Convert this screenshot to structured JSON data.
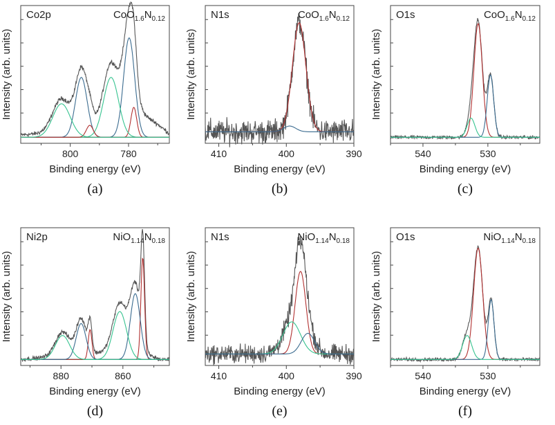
{
  "chart_data": [
    {
      "type": "line",
      "panel_label": "(a)",
      "region": "Co2p",
      "compound": {
        "base": "CoO",
        "o_sub": "1.6",
        "n": "N",
        "n_sub": "0.12"
      },
      "xlabel": "Binding energy (eV)",
      "ylabel": "Intensity (arb. units)",
      "xlim": [
        817,
        766
      ],
      "ylim": [
        -0.05,
        1.1
      ],
      "xticks": [
        800,
        780
      ],
      "x_reversed": true,
      "series": [
        {
          "kind": "measured",
          "color": "#555555",
          "peaks": [
            {
              "c": 779.8,
              "w": 1.9,
              "a": 0.83
            },
            {
              "c": 778.2,
              "w": 1.0,
              "a": 0.25
            },
            {
              "c": 786.0,
              "w": 2.6,
              "a": 0.5
            },
            {
              "c": 796.2,
              "w": 2.0,
              "a": 0.5
            },
            {
              "c": 793.3,
              "w": 1.2,
              "a": 0.1
            },
            {
              "c": 803.0,
              "w": 3.0,
              "a": 0.28
            }
          ],
          "bg": [
            [
              817,
              0.02
            ],
            [
              798,
              0.05
            ],
            [
              790,
              0.1
            ],
            [
              783,
              0.14
            ],
            [
              775,
              0.19
            ],
            [
              770,
              0.11
            ],
            [
              766,
              0.03
            ]
          ],
          "noise": 0.015
        },
        {
          "kind": "component",
          "color": "#3a6b8f",
          "peaks": [
            {
              "c": 779.8,
              "w": 1.9,
              "a": 0.83
            }
          ]
        },
        {
          "kind": "component",
          "color": "#b13030",
          "peaks": [
            {
              "c": 778.2,
              "w": 1.0,
              "a": 0.25
            }
          ]
        },
        {
          "kind": "component",
          "color": "#35c38f",
          "peaks": [
            {
              "c": 786.0,
              "w": 2.6,
              "a": 0.5
            }
          ]
        },
        {
          "kind": "component",
          "color": "#3a6b8f",
          "peaks": [
            {
              "c": 796.2,
              "w": 2.0,
              "a": 0.5
            }
          ]
        },
        {
          "kind": "component",
          "color": "#b13030",
          "peaks": [
            {
              "c": 793.3,
              "w": 1.2,
              "a": 0.1
            }
          ]
        },
        {
          "kind": "component",
          "color": "#35c38f",
          "peaks": [
            {
              "c": 803.0,
              "w": 3.0,
              "a": 0.28
            }
          ]
        }
      ]
    },
    {
      "type": "line",
      "panel_label": "(b)",
      "region": "N1s",
      "compound": {
        "base": "CoO",
        "o_sub": "1.6",
        "n": "N",
        "n_sub": "0.12"
      },
      "xlabel": "Binding energy (eV)",
      "ylabel": "",
      "xlim": [
        412,
        390
      ],
      "ylim": [
        -0.1,
        1.1
      ],
      "xticks": [
        410,
        400,
        390
      ],
      "x_reversed": true,
      "series": [
        {
          "kind": "measured",
          "color": "#555555",
          "peaks": [
            {
              "c": 398.1,
              "w": 1.0,
              "a": 0.95
            }
          ],
          "bg": [
            [
              412,
              0.0
            ],
            [
              390,
              0.0
            ]
          ],
          "noise": 0.09
        },
        {
          "kind": "component",
          "color": "#b13030",
          "peaks": [
            {
              "c": 398.1,
              "w": 1.0,
              "a": 0.95
            }
          ]
        },
        {
          "kind": "component",
          "color": "#3a6b8f",
          "peaks": [
            {
              "c": 399.5,
              "w": 0.9,
              "a": 0.05
            }
          ]
        }
      ]
    },
    {
      "type": "line",
      "panel_label": "(c)",
      "region": "O1s",
      "compound": {
        "base": "CoO",
        "o_sub": "1.6",
        "n": "N",
        "n_sub": "0.12"
      },
      "xlabel": "Binding energy (eV)",
      "ylabel": "",
      "xlim": [
        545,
        522
      ],
      "ylim": [
        -0.05,
        1.1
      ],
      "xticks": [
        540,
        530
      ],
      "x_reversed": true,
      "series": [
        {
          "kind": "measured",
          "color": "#555555",
          "peaks": [
            {
              "c": 531.5,
              "w": 0.65,
              "a": 0.95
            },
            {
              "c": 529.6,
              "w": 0.5,
              "a": 0.52
            },
            {
              "c": 532.6,
              "w": 0.6,
              "a": 0.16
            }
          ],
          "bg": [
            [
              545,
              0.0
            ],
            [
              522,
              0.0
            ]
          ],
          "noise": 0.012
        },
        {
          "kind": "component",
          "color": "#b13030",
          "peaks": [
            {
              "c": 531.5,
              "w": 0.65,
              "a": 0.95
            }
          ]
        },
        {
          "kind": "component",
          "color": "#3a6b8f",
          "peaks": [
            {
              "c": 529.6,
              "w": 0.5,
              "a": 0.52
            }
          ]
        },
        {
          "kind": "component",
          "color": "#35c38f",
          "peaks": [
            {
              "c": 532.6,
              "w": 0.6,
              "a": 0.16
            }
          ]
        }
      ]
    },
    {
      "type": "line",
      "panel_label": "(d)",
      "region": "Ni2p",
      "compound": {
        "base": "NiO",
        "o_sub": "1.14",
        "n": "N",
        "n_sub": "0.18"
      },
      "xlabel": "Binding energy (eV)",
      "ylabel": "Intensity (arb. units)",
      "xlim": [
        893,
        845
      ],
      "ylim": [
        -0.05,
        1.1
      ],
      "xticks": [
        880,
        860
      ],
      "x_reversed": true,
      "series": [
        {
          "kind": "measured",
          "color": "#555555",
          "peaks": [
            {
              "c": 853.6,
              "w": 0.6,
              "a": 0.85
            },
            {
              "c": 856.0,
              "w": 1.6,
              "a": 0.55
            },
            {
              "c": 861.0,
              "w": 2.2,
              "a": 0.4
            },
            {
              "c": 870.6,
              "w": 0.6,
              "a": 0.25
            },
            {
              "c": 873.5,
              "w": 1.6,
              "a": 0.3
            },
            {
              "c": 879.5,
              "w": 2.3,
              "a": 0.2
            }
          ],
          "bg": [
            [
              893,
              0.0
            ],
            [
              875,
              0.04
            ],
            [
              866,
              0.06
            ],
            [
              858,
              0.08
            ],
            [
              852,
              0.04
            ],
            [
              848,
              0.0
            ],
            [
              845,
              0.0
            ]
          ],
          "noise": 0.015
        },
        {
          "kind": "component",
          "color": "#b13030",
          "peaks": [
            {
              "c": 853.6,
              "w": 0.6,
              "a": 0.85
            }
          ]
        },
        {
          "kind": "component",
          "color": "#3a6b8f",
          "peaks": [
            {
              "c": 856.0,
              "w": 1.6,
              "a": 0.55
            }
          ]
        },
        {
          "kind": "component",
          "color": "#35c38f",
          "peaks": [
            {
              "c": 861.0,
              "w": 2.2,
              "a": 0.4
            }
          ]
        },
        {
          "kind": "component",
          "color": "#b13030",
          "peaks": [
            {
              "c": 870.6,
              "w": 0.6,
              "a": 0.25
            }
          ]
        },
        {
          "kind": "component",
          "color": "#3a6b8f",
          "peaks": [
            {
              "c": 873.5,
              "w": 1.6,
              "a": 0.3
            }
          ]
        },
        {
          "kind": "component",
          "color": "#35c38f",
          "peaks": [
            {
              "c": 879.5,
              "w": 2.3,
              "a": 0.2
            }
          ]
        }
      ]
    },
    {
      "type": "line",
      "panel_label": "(e)",
      "region": "N1s",
      "compound": {
        "base": "NiO",
        "o_sub": "1.14",
        "n": "N",
        "n_sub": "0.18"
      },
      "xlabel": "Binding energy (eV)",
      "ylabel": "",
      "xlim": [
        412,
        390
      ],
      "ylim": [
        -0.1,
        1.1
      ],
      "xticks": [
        410,
        400,
        390
      ],
      "x_reversed": true,
      "series": [
        {
          "kind": "measured",
          "color": "#555555",
          "peaks": [
            {
              "c": 397.9,
              "w": 0.8,
              "a": 0.72
            },
            {
              "c": 399.2,
              "w": 1.3,
              "a": 0.28
            },
            {
              "c": 396.8,
              "w": 1.0,
              "a": 0.18
            }
          ],
          "bg": [
            [
              412,
              0.0
            ],
            [
              390,
              0.0
            ]
          ],
          "noise": 0.07
        },
        {
          "kind": "component",
          "color": "#b13030",
          "peaks": [
            {
              "c": 397.9,
              "w": 0.8,
              "a": 0.72
            }
          ]
        },
        {
          "kind": "component",
          "color": "#35c38f",
          "peaks": [
            {
              "c": 399.2,
              "w": 1.3,
              "a": 0.28
            }
          ]
        },
        {
          "kind": "component",
          "color": "#3a6b8f",
          "peaks": [
            {
              "c": 396.8,
              "w": 1.0,
              "a": 0.18
            }
          ]
        }
      ]
    },
    {
      "type": "line",
      "panel_label": "(f)",
      "region": "O1s",
      "compound": {
        "base": "NiO",
        "o_sub": "1.14",
        "n": "N",
        "n_sub": "0.18"
      },
      "xlabel": "Binding energy (eV)",
      "ylabel": "",
      "xlim": [
        545,
        522
      ],
      "ylim": [
        -0.05,
        1.1
      ],
      "xticks": [
        540,
        530
      ],
      "x_reversed": true,
      "series": [
        {
          "kind": "measured",
          "color": "#555555",
          "peaks": [
            {
              "c": 531.5,
              "w": 0.7,
              "a": 0.93
            },
            {
              "c": 529.5,
              "w": 0.45,
              "a": 0.5
            },
            {
              "c": 533.2,
              "w": 0.7,
              "a": 0.2
            }
          ],
          "bg": [
            [
              545,
              0.0
            ],
            [
              522,
              0.0
            ]
          ],
          "noise": 0.012
        },
        {
          "kind": "component",
          "color": "#b13030",
          "peaks": [
            {
              "c": 531.5,
              "w": 0.7,
              "a": 0.93
            }
          ]
        },
        {
          "kind": "component",
          "color": "#3a6b8f",
          "peaks": [
            {
              "c": 529.5,
              "w": 0.45,
              "a": 0.5
            }
          ]
        },
        {
          "kind": "component",
          "color": "#35c38f",
          "peaks": [
            {
              "c": 533.2,
              "w": 0.7,
              "a": 0.2
            }
          ]
        }
      ]
    }
  ]
}
